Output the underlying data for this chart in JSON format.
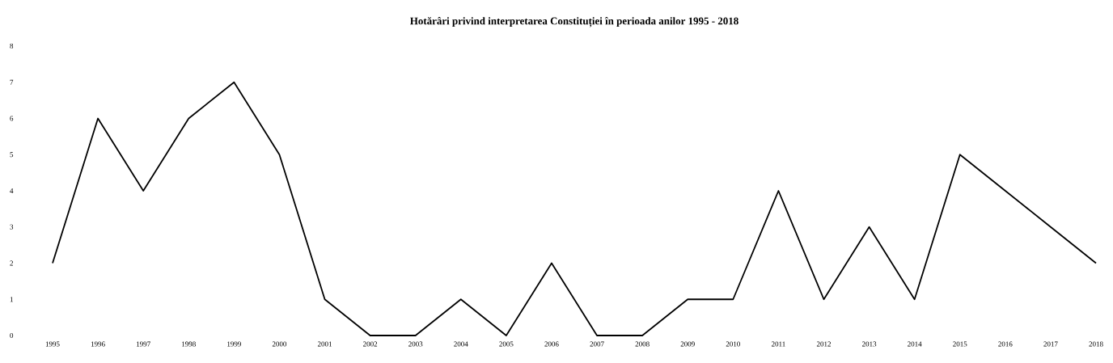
{
  "chart_data": {
    "type": "line",
    "title": "Hotărâri privind interpretarea Constituției în perioada anilor 1995 - 2018",
    "categories": [
      "1995",
      "1996",
      "1997",
      "1998",
      "1999",
      "2000",
      "2001",
      "2002",
      "2003",
      "2004",
      "2005",
      "2006",
      "2007",
      "2008",
      "2009",
      "2010",
      "2011",
      "2012",
      "2013",
      "2014",
      "2015",
      "2016",
      "2017",
      "2018"
    ],
    "values": [
      2,
      6,
      4,
      6,
      7,
      5,
      1,
      0,
      0,
      1,
      0,
      2,
      0,
      0,
      1,
      1,
      4,
      1,
      3,
      1,
      5,
      4,
      3,
      2
    ],
    "color": "#000000",
    "ylim": [
      0,
      8
    ],
    "yticks": [
      0,
      1,
      2,
      3,
      4,
      5,
      6,
      7,
      8
    ]
  }
}
